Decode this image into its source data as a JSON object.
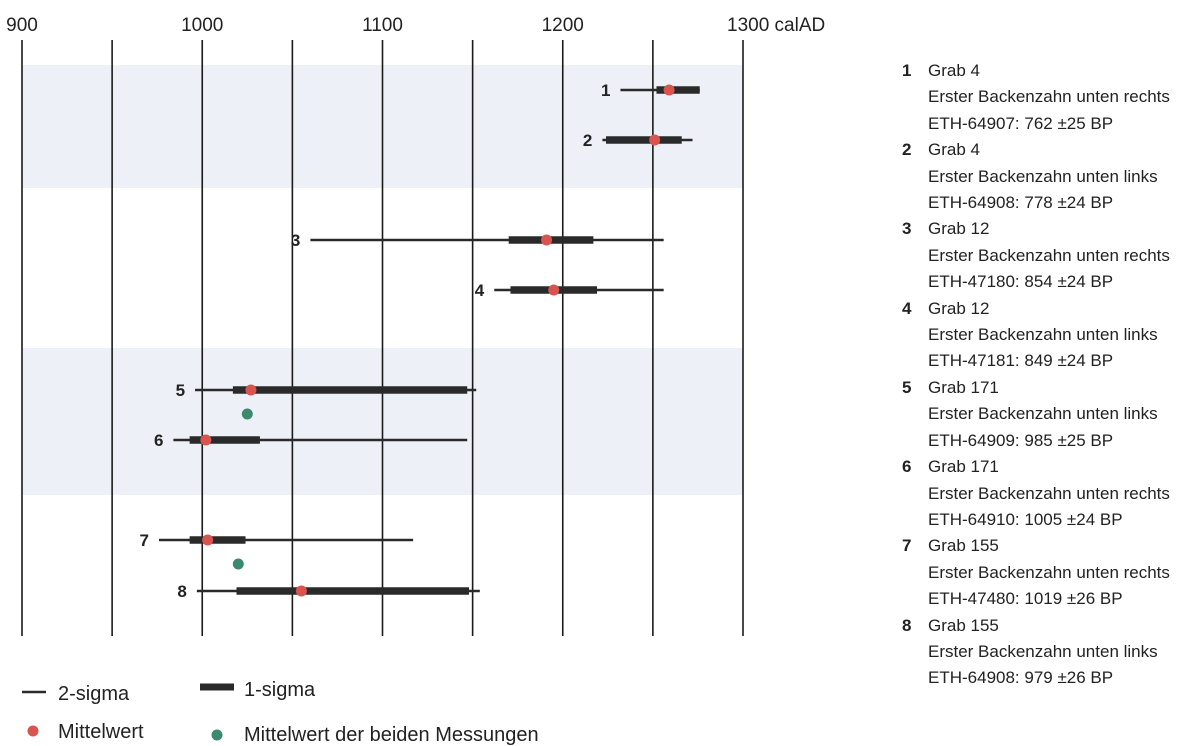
{
  "chart_data": {
    "type": "range",
    "x_axis": {
      "min": 900,
      "max": 1300,
      "ticks": [
        900,
        1000,
        1100,
        1200,
        1300
      ],
      "unit_label": "calAD"
    },
    "rows": [
      {
        "label": "1",
        "sigma2": [
          1232,
          1276
        ],
        "sigma1": [
          1252,
          1276
        ],
        "mean": 1259
      },
      {
        "label": "2",
        "sigma2": [
          1222,
          1272
        ],
        "sigma1": [
          1224,
          1266
        ],
        "mean": 1251
      },
      {
        "label": "3",
        "sigma2": [
          1060,
          1256
        ],
        "sigma1": [
          1170,
          1217
        ],
        "mean": 1191
      },
      {
        "label": "4",
        "sigma2": [
          1162,
          1256
        ],
        "sigma1": [
          1171,
          1219
        ],
        "mean": 1195
      },
      {
        "label": "5",
        "sigma2": [
          996,
          1152
        ],
        "sigma1": [
          1017,
          1147
        ],
        "mean": 1027
      },
      {
        "label": "6",
        "sigma2": [
          984,
          1147
        ],
        "sigma1": [
          993,
          1032
        ],
        "mean": 1002
      },
      {
        "label": "7",
        "sigma2": [
          976,
          1117
        ],
        "sigma1": [
          993,
          1024
        ],
        "mean": 1003
      },
      {
        "label": "8",
        "sigma2": [
          997,
          1154
        ],
        "sigma1": [
          1019,
          1148
        ],
        "mean": 1055
      }
    ],
    "combined_means": [
      {
        "between_rows": [
          5,
          6
        ],
        "value": 1025
      },
      {
        "between_rows": [
          7,
          8
        ],
        "value": 1020
      }
    ],
    "legend": {
      "sigma2": "2-sigma",
      "sigma1": "1-sigma",
      "mean": "Mittelwert",
      "combined_mean": "Mittelwert der beiden Messungen"
    },
    "colors": {
      "line": "#2a2a2a",
      "mean": "#d9534f",
      "combined_mean": "#3b8a6e",
      "band": "#eef0f8",
      "grid": "#1a1a1a"
    }
  },
  "samples": [
    {
      "num": "1",
      "grave": "Grab 4",
      "desc": "Erster Backenzahn unten rechts",
      "lab": "ETH-64907: 762 ±25 BP"
    },
    {
      "num": "2",
      "grave": "Grab 4",
      "desc": "Erster Backenzahn unten links",
      "lab": "ETH-64908: 778 ±24 BP"
    },
    {
      "num": "3",
      "grave": "Grab 12",
      "desc": "Erster Backenzahn unten rechts",
      "lab": "ETH-47180: 854 ±24 BP"
    },
    {
      "num": "4",
      "grave": "Grab 12",
      "desc": "Erster Backenzahn unten links",
      "lab": "ETH-47181: 849 ±24 BP"
    },
    {
      "num": "5",
      "grave": "Grab 171",
      "desc": "Erster Backenzahn unten links",
      "lab": "ETH-64909: 985 ±25 BP"
    },
    {
      "num": "6",
      "grave": "Grab 171",
      "desc": "Erster Backenzahn unten rechts",
      "lab": "ETH-64910: 1005 ±24 BP"
    },
    {
      "num": "7",
      "grave": "Grab 155",
      "desc": "Erster Backenzahn unten rechts",
      "lab": "ETH-47480: 1019 ±26 BP"
    },
    {
      "num": "8",
      "grave": "Grab 155",
      "desc": "Erster Backenzahn unten links",
      "lab": "ETH-64908: 979 ±26 BP"
    }
  ]
}
